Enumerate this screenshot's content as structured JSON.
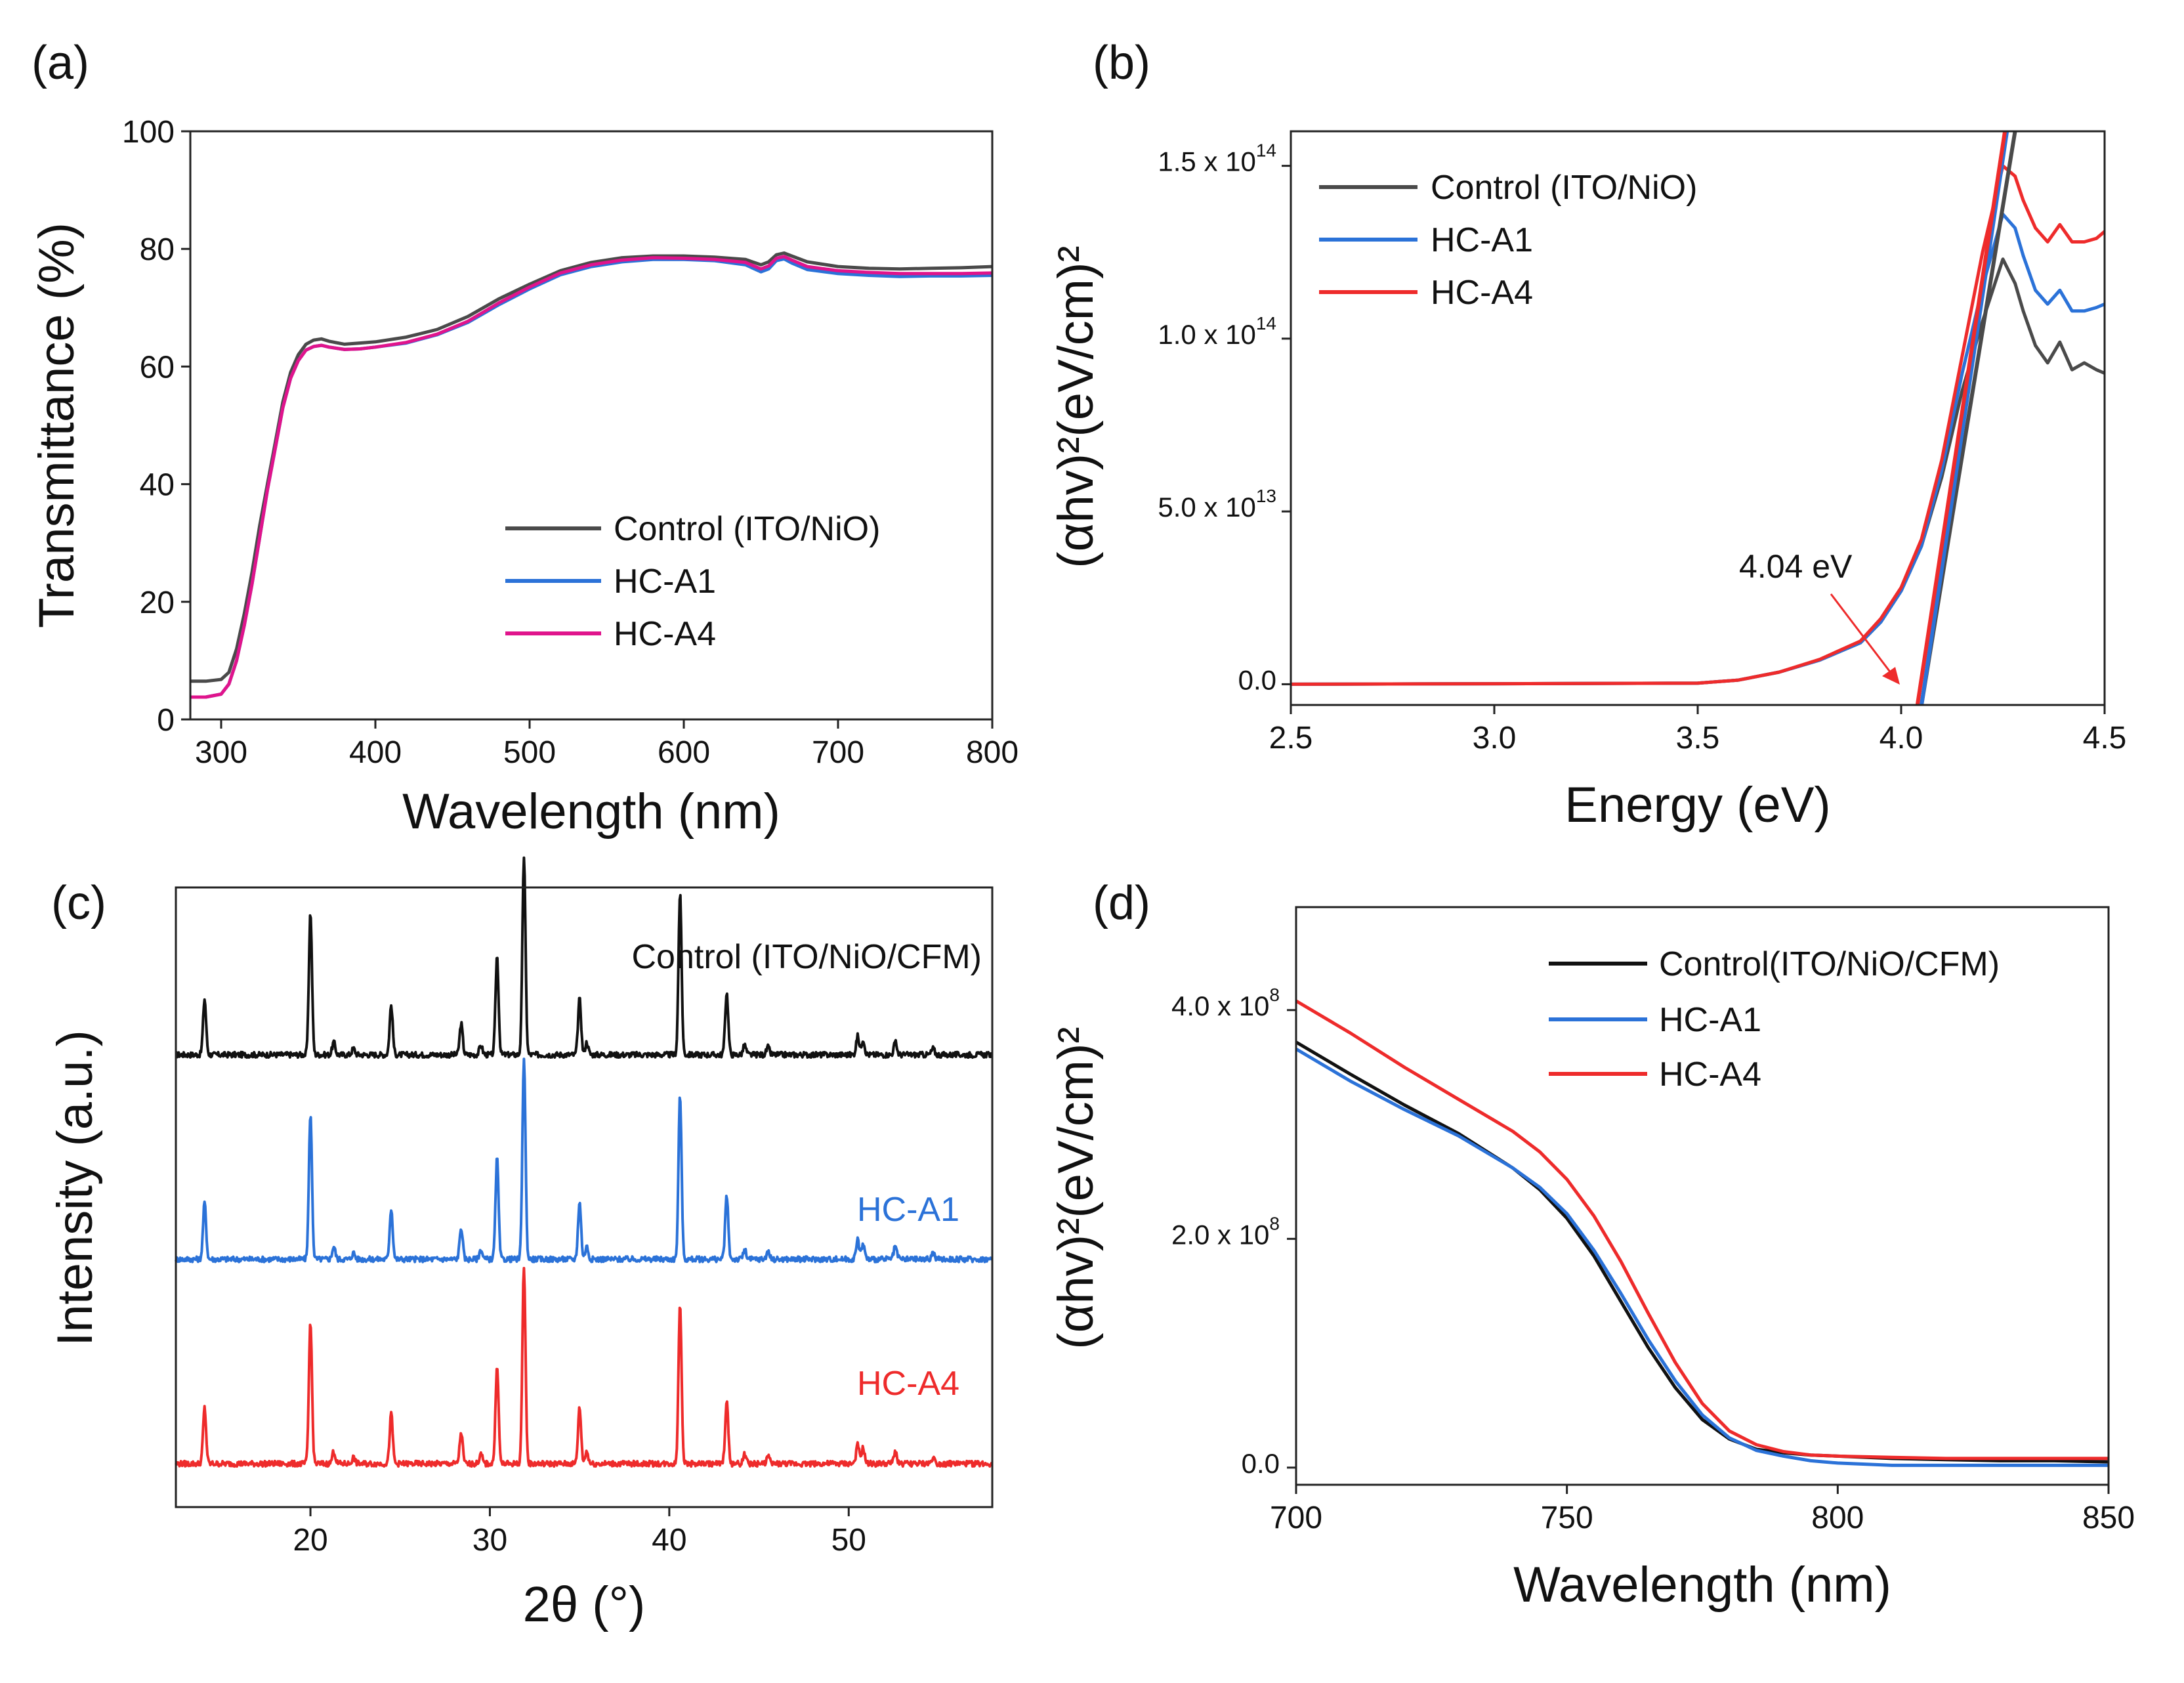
{
  "figure": {
    "panel_letters": [
      "(a)",
      "(b)",
      "(c)",
      "(d)"
    ],
    "colors": {
      "control": "#4a4a4a",
      "hc_a1": "#2b72d8",
      "hc_a4_magenta": "#e0148c",
      "hc_a4_red": "#ee2b2b",
      "control_black": "#111111",
      "annotation_arrow": "#ee2b2b"
    }
  },
  "chart_data": [
    {
      "panel": "(a)",
      "type": "line",
      "xlabel": "Wavelength (nm)",
      "ylabel": "Transmittance (%)",
      "xlim": [
        280,
        800
      ],
      "ylim": [
        0,
        100
      ],
      "xticks": [
        300,
        400,
        500,
        600,
        700,
        800
      ],
      "yticks": [
        0,
        20,
        40,
        60,
        80,
        100
      ],
      "legend_position": "lower-right",
      "x": [
        280,
        290,
        300,
        305,
        310,
        315,
        320,
        325,
        330,
        335,
        340,
        345,
        350,
        355,
        360,
        365,
        370,
        380,
        390,
        400,
        420,
        440,
        460,
        480,
        500,
        520,
        540,
        560,
        580,
        600,
        620,
        640,
        650,
        655,
        660,
        665,
        670,
        680,
        700,
        720,
        740,
        760,
        780,
        800
      ],
      "series": [
        {
          "name": "Control (ITO/NiO)",
          "color": "#4a4a4a",
          "values": [
            6.5,
            6.5,
            6.8,
            8,
            12,
            18,
            25,
            33,
            40,
            47,
            54,
            59,
            62,
            63.8,
            64.5,
            64.7,
            64.3,
            63.8,
            64,
            64.2,
            65,
            66.3,
            68.5,
            71.5,
            74,
            76.3,
            77.7,
            78.5,
            78.8,
            78.8,
            78.6,
            78.2,
            77.3,
            77.8,
            79,
            79.3,
            78.8,
            77.8,
            77,
            76.7,
            76.6,
            76.7,
            76.8,
            77
          ]
        },
        {
          "name": "HC-A1",
          "color": "#2b72d8",
          "values": [
            3.8,
            3.8,
            4.3,
            6,
            10,
            16,
            23,
            31,
            39,
            46,
            53,
            58,
            61,
            62.8,
            63.4,
            63.6,
            63.3,
            62.9,
            63,
            63.3,
            64,
            65.4,
            67.5,
            70.5,
            73.2,
            75.6,
            77,
            77.8,
            78.2,
            78.2,
            78,
            77.3,
            76.1,
            76.6,
            78,
            78.3,
            77.6,
            76.5,
            75.8,
            75.5,
            75.3,
            75.4,
            75.4,
            75.5
          ]
        },
        {
          "name": "HC-A4",
          "color": "#e0148c",
          "values": [
            3.8,
            3.8,
            4.3,
            6,
            10,
            16,
            23,
            31,
            39,
            46,
            53,
            58,
            61,
            62.8,
            63.4,
            63.6,
            63.3,
            62.9,
            63,
            63.3,
            64.1,
            65.5,
            67.7,
            70.8,
            73.5,
            75.9,
            77.3,
            78.1,
            78.5,
            78.4,
            78.2,
            77.7,
            76.6,
            77.1,
            78.4,
            78.7,
            78.1,
            77,
            76.3,
            76,
            75.8,
            75.8,
            75.8,
            75.9
          ]
        }
      ]
    },
    {
      "panel": "(b)",
      "type": "line",
      "xlabel": "Energy (eV)",
      "ylabel": "(αhv)²(eV/cm)²",
      "xlim": [
        2.5,
        4.5
      ],
      "ylim": [
        -6000000000000.0,
        160000000000000.0
      ],
      "xticks": [
        2.5,
        3.0,
        3.5,
        4.0,
        4.5
      ],
      "ytick_labels": [
        {
          "value": 0,
          "mantissa": "0.0",
          "exponent": ""
        },
        {
          "value": 50000000000000.0,
          "mantissa": "5.0 x 10",
          "exponent": "13"
        },
        {
          "value": 100000000000000.0,
          "mantissa": "1.0 x 10",
          "exponent": "14"
        },
        {
          "value": 150000000000000.0,
          "mantissa": "1.5 x 10",
          "exponent": "14"
        }
      ],
      "legend_position": "top-right",
      "annotation": {
        "text": "4.04 eV",
        "x": 4.04,
        "y": 0
      },
      "series": [
        {
          "name": "Control (ITO/NiO)",
          "color": "#4a4a4a",
          "x": [
            2.5,
            3.5,
            3.6,
            3.7,
            3.8,
            3.9,
            3.95,
            4.0,
            4.05,
            4.1,
            4.15,
            4.2,
            4.25,
            4.28,
            4.3,
            4.33,
            4.36,
            4.39,
            4.42,
            4.45,
            4.48,
            4.5
          ],
          "values": [
            0,
            300000000000.0,
            1200000000000.0,
            3500000000000.0,
            7000000000000.0,
            12000000000000.0,
            18000000000000.0,
            27000000000000.0,
            40000000000000.0,
            60000000000000.0,
            85000000000000.0,
            105000000000000.0,
            123000000000000.0,
            116000000000000.0,
            108000000000000.0,
            98000000000000.0,
            93000000000000.0,
            99000000000000.0,
            91000000000000.0,
            93000000000000.0,
            91000000000000.0,
            90000000000000.0
          ]
        },
        {
          "name": "HC-A1",
          "color": "#2b72d8",
          "x": [
            2.5,
            3.5,
            3.6,
            3.7,
            3.8,
            3.9,
            3.95,
            4.0,
            4.05,
            4.1,
            4.15,
            4.2,
            4.25,
            4.28,
            4.3,
            4.33,
            4.36,
            4.39,
            4.42,
            4.45,
            4.48,
            4.5
          ],
          "values": [
            0,
            300000000000.0,
            1200000000000.0,
            3500000000000.0,
            7000000000000.0,
            12000000000000.0,
            18000000000000.0,
            27000000000000.0,
            40000000000000.0,
            62000000000000.0,
            90000000000000.0,
            115000000000000.0,
            136000000000000.0,
            132000000000000.0,
            124000000000000.0,
            114000000000000.0,
            110000000000000.0,
            114000000000000.0,
            108000000000000.0,
            108000000000000.0,
            109000000000000.0,
            110000000000000.0
          ]
        },
        {
          "name": "HC-A4",
          "color": "#ee2b2b",
          "x": [
            2.5,
            3.5,
            3.6,
            3.7,
            3.8,
            3.9,
            3.95,
            4.0,
            4.05,
            4.1,
            4.15,
            4.2,
            4.25,
            4.28,
            4.3,
            4.33,
            4.36,
            4.39,
            4.42,
            4.45,
            4.48,
            4.5
          ],
          "values": [
            0,
            300000000000.0,
            1200000000000.0,
            3500000000000.0,
            7200000000000.0,
            12500000000000.0,
            19000000000000.0,
            28000000000000.0,
            42000000000000.0,
            65000000000000.0,
            95000000000000.0,
            125000000000000.0,
            150000000000000.0,
            147000000000000.0,
            140000000000000.0,
            132000000000000.0,
            128000000000000.0,
            133000000000000.0,
            128000000000000.0,
            128000000000000.0,
            129000000000000.0,
            131000000000000.0
          ]
        }
      ],
      "fit_lines": [
        {
          "color": "#4a4a4a",
          "x": [
            4.05,
            4.28
          ],
          "values": [
            -6000000000000.0,
            160000000000000.0
          ]
        },
        {
          "color": "#2b72d8",
          "x": [
            4.05,
            4.26
          ],
          "values": [
            -6000000000000.0,
            160000000000000.0
          ]
        },
        {
          "color": "#ee2b2b",
          "x": [
            4.04,
            4.255
          ],
          "values": [
            -6000000000000.0,
            160000000000000.0
          ]
        }
      ]
    },
    {
      "panel": "(c)",
      "type": "line",
      "xlabel": "2θ (°)",
      "ylabel": "Intensity (a.u.)",
      "xlim": [
        12.5,
        58
      ],
      "ylim": [
        0,
        100
      ],
      "xticks": [
        20,
        30,
        40,
        50
      ],
      "peaks": [
        {
          "pos": 14.1,
          "height": 9
        },
        {
          "pos": 20.0,
          "height": 23
        },
        {
          "pos": 21.3,
          "height": 2
        },
        {
          "pos": 22.4,
          "height": 1
        },
        {
          "pos": 24.5,
          "height": 8
        },
        {
          "pos": 28.4,
          "height": 5
        },
        {
          "pos": 29.5,
          "height": 1.5
        },
        {
          "pos": 30.4,
          "height": 16
        },
        {
          "pos": 31.9,
          "height": 32
        },
        {
          "pos": 35.0,
          "height": 9
        },
        {
          "pos": 35.4,
          "height": 2
        },
        {
          "pos": 40.6,
          "height": 26
        },
        {
          "pos": 43.2,
          "height": 10
        },
        {
          "pos": 44.2,
          "height": 1.5
        },
        {
          "pos": 45.5,
          "height": 1.2
        },
        {
          "pos": 50.5,
          "height": 3
        },
        {
          "pos": 50.8,
          "height": 2.5
        },
        {
          "pos": 52.6,
          "height": 2
        },
        {
          "pos": 54.7,
          "height": 1
        }
      ],
      "series": [
        {
          "name": "Control (ITO/NiO/CFM)",
          "color": "#111111",
          "baseline": 73
        },
        {
          "name": "HC-A1",
          "color": "#2b72d8",
          "baseline": 40
        },
        {
          "name": "HC-A4",
          "color": "#ee2b2b",
          "baseline": 7
        }
      ]
    },
    {
      "panel": "(d)",
      "type": "line",
      "xlabel": "Wavelength (nm)",
      "ylabel": "(αhv)²(eV/cm)²",
      "xlim": [
        700,
        850
      ],
      "ylim": [
        -15000000.0,
        490000000.0
      ],
      "xticks": [
        700,
        750,
        800,
        850
      ],
      "ytick_labels": [
        {
          "value": 0,
          "mantissa": "0.0",
          "exponent": ""
        },
        {
          "value": 200000000.0,
          "mantissa": "2.0 x 10",
          "exponent": "8"
        },
        {
          "value": 400000000.0,
          "mantissa": "4.0 x 10",
          "exponent": "8"
        }
      ],
      "legend_position": "top-right",
      "x": [
        700,
        710,
        720,
        730,
        740,
        745,
        750,
        755,
        760,
        765,
        770,
        775,
        780,
        785,
        790,
        795,
        800,
        810,
        820,
        830,
        840,
        850
      ],
      "series": [
        {
          "name": "Control(ITO/NiO/CFM)",
          "color": "#111111",
          "values": [
            372000000.0,
            344000000.0,
            317000000.0,
            292000000.0,
            262000000.0,
            243000000.0,
            218000000.0,
            185000000.0,
            145000000.0,
            105000000.0,
            70000000.0,
            42000000.0,
            25000000.0,
            16000000.0,
            13000000.0,
            11000000.0,
            10000000.0,
            8000000.0,
            7000000.0,
            6000000.0,
            6000000.0,
            5000000.0
          ]
        },
        {
          "name": "HC-A1",
          "color": "#2b72d8",
          "values": [
            366000000.0,
            338000000.0,
            313000000.0,
            290000000.0,
            262000000.0,
            245000000.0,
            222000000.0,
            190000000.0,
            152000000.0,
            112000000.0,
            76000000.0,
            46000000.0,
            26000000.0,
            15000000.0,
            10000000.0,
            6000000.0,
            4000000.0,
            2000000.0,
            2000000.0,
            2000000.0,
            2000000.0,
            2000000.0
          ]
        },
        {
          "name": "HC-A4",
          "color": "#ee2b2b",
          "values": [
            408000000.0,
            380000000.0,
            350000000.0,
            322000000.0,
            294000000.0,
            276000000.0,
            252000000.0,
            220000000.0,
            180000000.0,
            135000000.0,
            92000000.0,
            56000000.0,
            32000000.0,
            20000000.0,
            14000000.0,
            11000000.0,
            10000000.0,
            9000000.0,
            8000000.0,
            8000000.0,
            8000000.0,
            8000000.0
          ]
        }
      ]
    }
  ]
}
